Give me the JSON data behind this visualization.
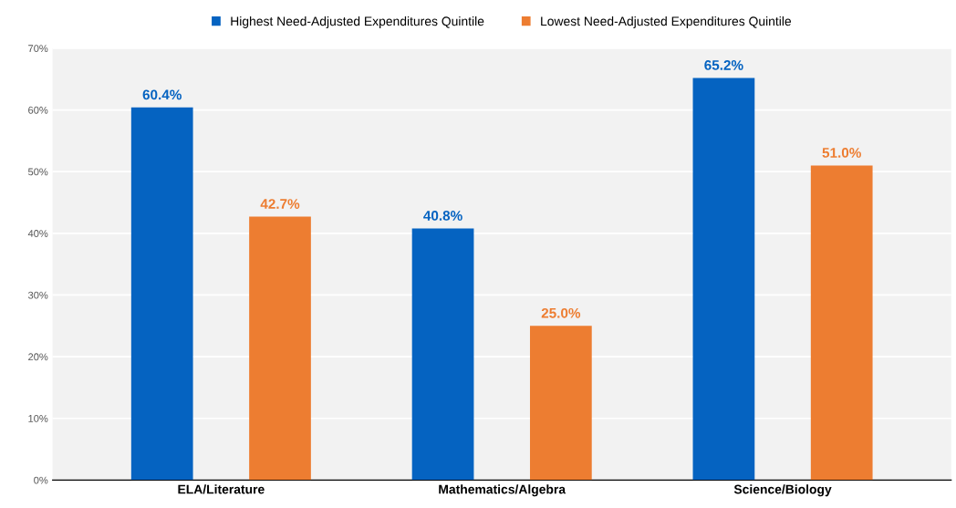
{
  "chart_data": {
    "type": "bar",
    "categories": [
      "ELA/Literature",
      "Mathematics/Algebra",
      "Science/Biology"
    ],
    "series": [
      {
        "name": "Highest Need-Adjusted Expenditures Quintile",
        "color": "#0563c1",
        "values": [
          60.4,
          40.8,
          65.2
        ],
        "value_labels": [
          "60.4%",
          "40.8%",
          "65.2%"
        ]
      },
      {
        "name": "Lowest Need-Adjusted Expenditures Quintile",
        "color": "#ed7d31",
        "values": [
          42.7,
          25.0,
          51.0
        ],
        "value_labels": [
          "42.7%",
          "25.0%",
          "51.0%"
        ]
      }
    ],
    "ylim": [
      0,
      70
    ],
    "yticks": [
      {
        "value": 0,
        "label": "0%"
      },
      {
        "value": 10,
        "label": "10%"
      },
      {
        "value": 20,
        "label": "20%"
      },
      {
        "value": 30,
        "label": "30%"
      },
      {
        "value": 40,
        "label": "40%"
      },
      {
        "value": 50,
        "label": "50%"
      },
      {
        "value": 60,
        "label": "60%"
      },
      {
        "value": 70,
        "label": "70%"
      }
    ],
    "grid": "y",
    "legend": "top"
  }
}
